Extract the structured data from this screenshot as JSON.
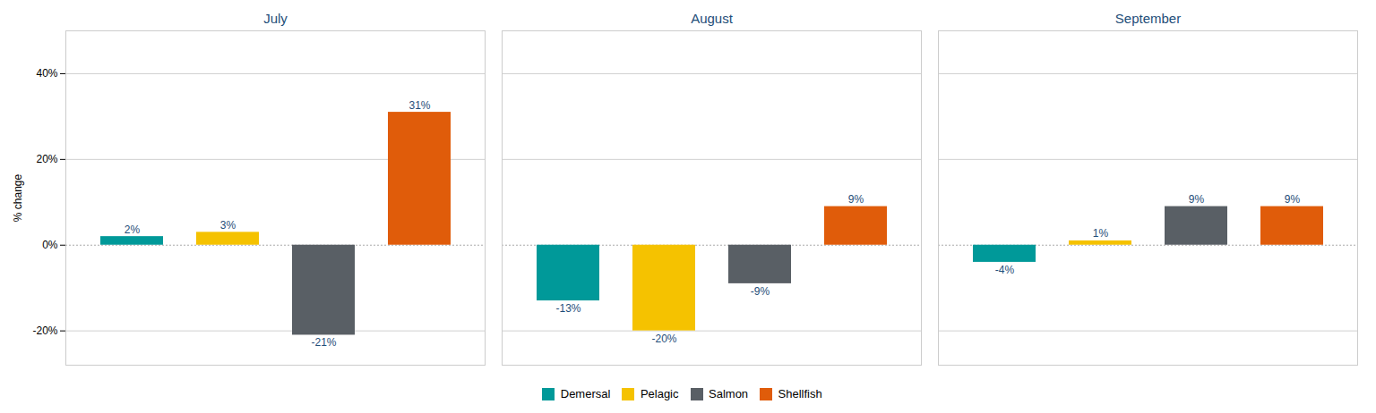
{
  "chart_data": {
    "type": "bar",
    "categories": [
      "July",
      "August",
      "September"
    ],
    "series": [
      {
        "name": "Demersal",
        "color": "#009999",
        "values": [
          2,
          -13,
          -4
        ],
        "value_labels": [
          "2%",
          "-13%",
          "-4%"
        ]
      },
      {
        "name": "Pelagic",
        "color": "#F5C200",
        "values": [
          3,
          -20,
          1
        ],
        "value_labels": [
          "3%",
          "-20%",
          "1%"
        ]
      },
      {
        "name": "Salmon",
        "color": "#595F65",
        "values": [
          -21,
          -9,
          9
        ],
        "value_labels": [
          "-21%",
          "-9%",
          "9%"
        ]
      },
      {
        "name": "Shellfish",
        "color": "#E05C0A",
        "values": [
          31,
          9,
          9
        ],
        "value_labels": [
          "31%",
          "9%",
          "9%"
        ]
      }
    ],
    "ylabel": "% change",
    "ylim": [
      -28,
      50
    ],
    "yticks": [
      {
        "value": -20,
        "label": "-20%"
      },
      {
        "value": 0,
        "label": "0%"
      },
      {
        "value": 20,
        "label": "20%"
      },
      {
        "value": 40,
        "label": "40%"
      }
    ],
    "grid": true,
    "data_labels": true,
    "legend": "bottom",
    "tick_labels": "y"
  }
}
